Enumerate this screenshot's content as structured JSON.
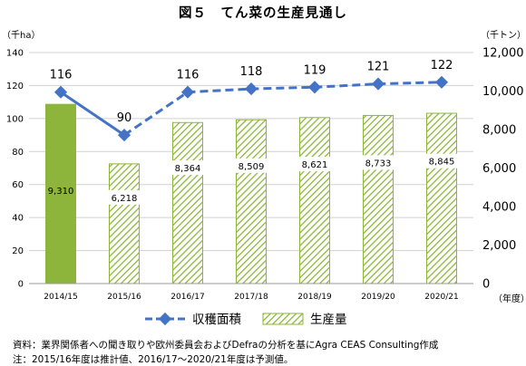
{
  "figure_title": "図５　てん菜の生産見通し",
  "notes": {
    "source": "資料：業界関係者への聞き取りや欧州委員会およびDefraの分析を基にAgra CEAS Consulting作成",
    "remark": "注：2015/16年度は推計値、2016/17～2020/21年度は予測値。"
  },
  "chart_data": {
    "type": "bar",
    "categories": [
      "2014/15",
      "2015/16",
      "2016/17",
      "2017/18",
      "2018/19",
      "2019/20",
      "2020/21"
    ],
    "left_axis": {
      "unit_label": "（千ha）",
      "range": [
        0,
        140
      ],
      "ticks": [
        0,
        20,
        40,
        60,
        80,
        100,
        120,
        140
      ]
    },
    "right_axis": {
      "unit_label": "（千トン）",
      "range": [
        0,
        12000
      ],
      "ticks": [
        0,
        2000,
        4000,
        6000,
        8000,
        10000,
        12000
      ],
      "tick_labels": [
        "0",
        "2,000",
        "4,000",
        "6,000",
        "8,000",
        "10,000",
        "12,000"
      ]
    },
    "x_axis_label": "（年度）",
    "series": [
      {
        "name": "収穫面積",
        "kind": "line",
        "axis": "left",
        "color": "#4472c4",
        "values": [
          116,
          90,
          116,
          118,
          119,
          121,
          122
        ],
        "labels": [
          "116",
          "90",
          "116",
          "118",
          "119",
          "121",
          "122"
        ],
        "solid_until_index": 1,
        "dashed_from_index": 1
      },
      {
        "name": "生産量",
        "kind": "bar",
        "axis": "right",
        "color": "#8db53c",
        "pattern": [
          "solid",
          "hatched",
          "hatched",
          "hatched",
          "hatched",
          "hatched",
          "hatched"
        ],
        "values": [
          9310,
          6218,
          8364,
          8509,
          8621,
          8733,
          8845
        ],
        "labels": [
          "9,310",
          "6,218",
          "8,364",
          "8,509",
          "8,621",
          "8,733",
          "8,845"
        ]
      }
    ],
    "legend_position": "bottom",
    "grid": "horizontal"
  }
}
